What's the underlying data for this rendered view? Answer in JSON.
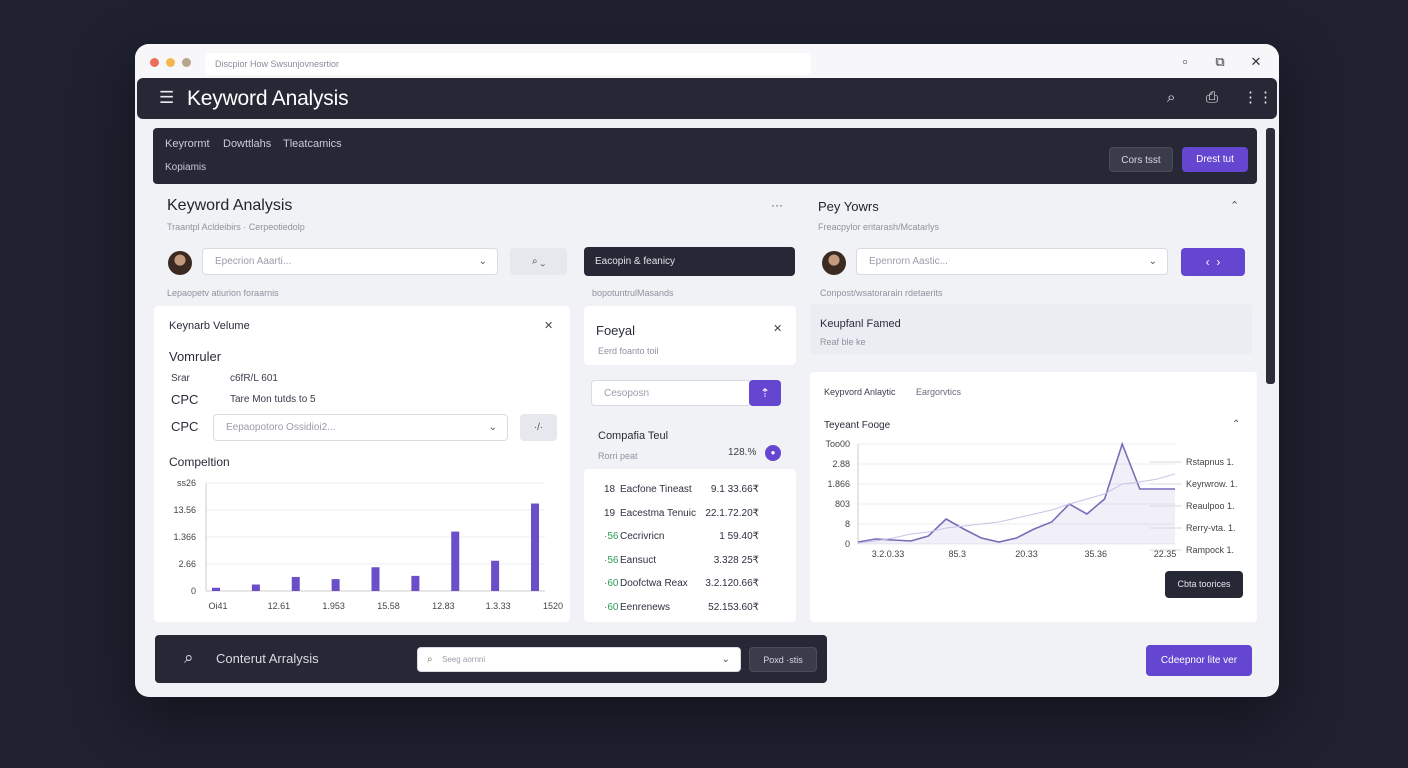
{
  "browser": {
    "url": "Discpior How Swsunjovnesrtior",
    "window_controls": [
      "minimize-icon",
      "restore-icon",
      "close-icon"
    ]
  },
  "appbar": {
    "title": "Keyword Analysis",
    "icons": [
      "search-icon",
      "camera-icon",
      "grid-icon"
    ]
  },
  "topband": {
    "tabs": [
      "Keyrormt",
      "Dowttlahs",
      "Tleatcamics"
    ],
    "sub": "Kopiamis",
    "btn_secondary": "Cors tsst",
    "btn_primary": "Drest tut"
  },
  "left_header": {
    "title": "Keyword Analysis",
    "subtitle": "Traantpl Acldeibirs  ·  Cerpeotiedolp",
    "more": "···",
    "select_placeholder": "Epecrion Aaarti...",
    "helper": "Lepaopetv atiurion foraarnis"
  },
  "middle_header": {
    "dark_button": "Eacopin & feanicy",
    "helper": "bopotuntrulMasands"
  },
  "right_header": {
    "title": "Pey Yowrs",
    "subtitle": "Freacpylor eritarash/Mcatarlys",
    "select_placeholder": "Epenrorn Aastic...",
    "helper": "Conpost/wsatorarain rdetaerits",
    "panel_title": "Keupfanl Famed",
    "panel_sub": "Reaf ble ke"
  },
  "kv_card": {
    "title": "Keynarb Velume",
    "section": "Vomruler",
    "rows": [
      {
        "label": "Srar",
        "value": "c6fR/L 601"
      },
      {
        "label": "CPC",
        "value": "Tare Mon tutds to 5"
      }
    ],
    "cpc_label": "CPC",
    "cpc_select": "Eepaopotoro Ossidioi2...",
    "cpc_button": "·/·",
    "competition_label": "Compeltion"
  },
  "bar_chart": {
    "ytick_labels": [
      "ss26",
      "13.56",
      "1.366",
      "2.66",
      "0"
    ],
    "xtick_labels": [
      "Oi41",
      "12.61",
      "1.953",
      "15.58",
      "12.83",
      "1.3.33",
      "1520"
    ]
  },
  "foeyal": {
    "title": "Foeyal",
    "sub": "Eerd foanto toil",
    "input_placeholder": "Cesoposn",
    "go_icon": "arrow-up-icon"
  },
  "comp_list": {
    "title": "Compafia Teul",
    "sub": "Rorri peat",
    "summary_value": "128.%",
    "rows": [
      {
        "num": "18",
        "label": "Eacfone Tineast",
        "value": "9.1 33.66₹"
      },
      {
        "num": "19",
        "label": "Eacestma Tenuic",
        "value": "22.1.72.20₹"
      },
      {
        "num": "·56",
        "label": "Cecrivricn",
        "value": "1 59.40₹"
      },
      {
        "num": "·56",
        "label": "Eansuct",
        "value": "3.328 25₹"
      },
      {
        "num": "·60",
        "label": "Doofctwa Reax",
        "value": "3.2.120.66₹"
      },
      {
        "num": "·60",
        "label": "Eenrenews",
        "value": "52.153.60₹"
      }
    ],
    "num_color": "#2e9a5a"
  },
  "line_card": {
    "tab1": "Keypvord Anlaytic",
    "tab2": "Eargorvtics",
    "title": "Teyeant Fooge",
    "ytick_labels": [
      "Too00",
      "2.88",
      "1.866",
      "803",
      "8",
      "0"
    ],
    "xtick_labels": [
      "3.2.0.33",
      "85.3",
      "20.33",
      "35.36",
      "22.35"
    ],
    "legend": [
      "Rstapnus 1.",
      "Keyrwrow. 1.",
      "Reaulpoo 1.",
      "Rerry-vta. 1.",
      "Rampock 1."
    ],
    "tooltip_button": "Cbta toorices"
  },
  "bottom_bar": {
    "label": "Conterut Arralysis",
    "search_placeholder": "Seeg aornni",
    "button": "Poxd ·stis",
    "cta": "Cdeepnor lite ver"
  },
  "colors": {
    "accent": "#6546d0",
    "dark": "#272836",
    "bar": "#6a4fc8",
    "line": "#7a6cb8"
  },
  "chart_data": [
    {
      "type": "bar",
      "title": "",
      "ylim": [
        0,
        100
      ],
      "values": [
        3,
        6,
        13,
        11,
        22,
        14,
        55,
        28,
        81
      ]
    },
    {
      "type": "line",
      "title": "",
      "ylim": [
        0,
        100
      ],
      "series": [
        {
          "values": [
            2,
            5,
            4,
            3,
            8,
            25,
            15,
            6,
            2,
            6,
            15,
            22,
            40,
            30,
            45,
            100,
            55,
            55,
            55
          ],
          "color": "#7a6cb8"
        },
        {
          "values": [
            1,
            3,
            6,
            10,
            12,
            16,
            18,
            20,
            22,
            26,
            30,
            34,
            40,
            45,
            50,
            60,
            62,
            65,
            70
          ],
          "color": "#c9c4e6"
        }
      ]
    }
  ]
}
